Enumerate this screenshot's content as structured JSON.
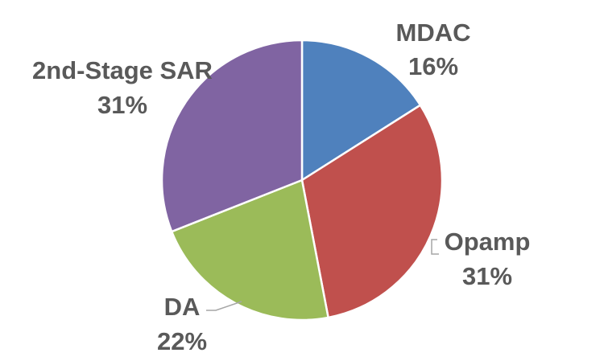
{
  "chart_data": {
    "type": "pie",
    "title": "",
    "slices": [
      {
        "label": "MDAC",
        "value": 16,
        "percent_label": "16%",
        "color": "#4F81BD"
      },
      {
        "label": "Opamp",
        "value": 31,
        "percent_label": "31%",
        "color": "#C0504D"
      },
      {
        "label": "DA",
        "value": 22,
        "percent_label": "22%",
        "color": "#9BBB59"
      },
      {
        "label": "2nd-Stage SAR",
        "value": 31,
        "percent_label": "31%",
        "color": "#8064A2"
      }
    ],
    "legend": "none",
    "start_angle": "12 o'clock",
    "direction": "clockwise"
  }
}
